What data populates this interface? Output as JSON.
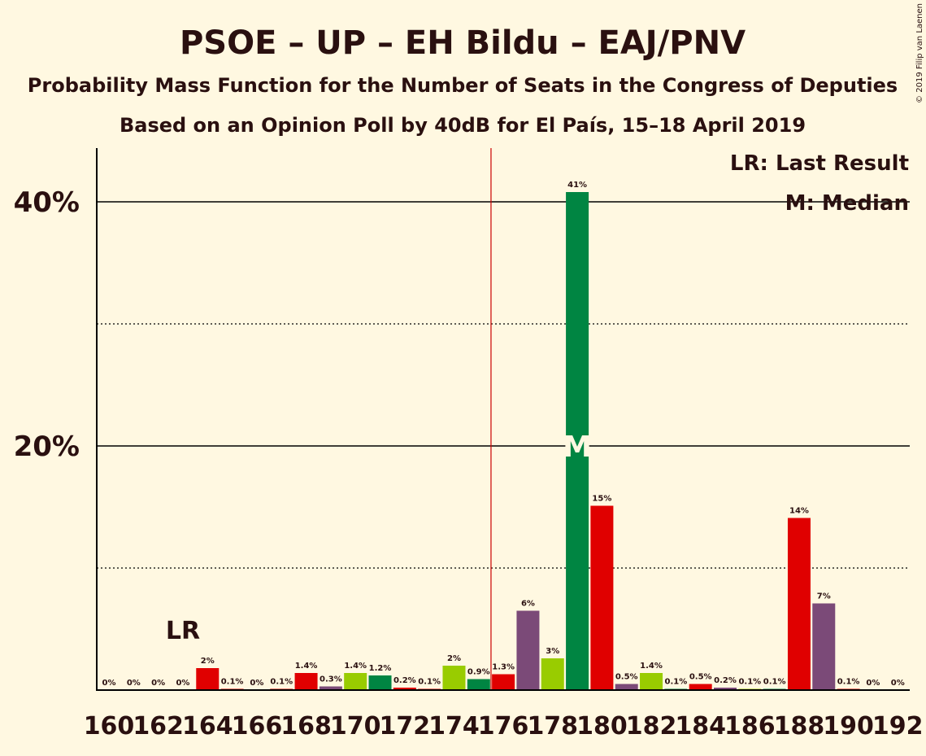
{
  "credit": "© 2019 Filip van Laenen",
  "chart_data": {
    "type": "bar",
    "title": "PSOE – UP – EH Bildu – EAJ/PNV",
    "subtitle1": "Probability Mass Function for the Number of Seats in the Congress of Deputies",
    "subtitle2": "Based on an Opinion Poll by 40dB for El País, 15–18 April 2019",
    "ylim": [
      0,
      44
    ],
    "y_major_ticks": [
      {
        "value": 20,
        "label": "20%"
      },
      {
        "value": 40,
        "label": "40%"
      }
    ],
    "y_minor_ticks": [
      10,
      30
    ],
    "x_tick_labels": [
      "160",
      "162",
      "164",
      "166",
      "168",
      "170",
      "172",
      "174",
      "176",
      "178",
      "180",
      "182",
      "184",
      "186",
      "188",
      "190",
      "192"
    ],
    "bars": [
      {
        "seats": 160,
        "value": 0,
        "label": "0%",
        "color": "#E00000"
      },
      {
        "seats": 161,
        "value": 0,
        "label": "0%",
        "color": "#E00000"
      },
      {
        "seats": 162,
        "value": 0,
        "label": "0%",
        "color": "#E00000"
      },
      {
        "seats": 163,
        "value": 0,
        "label": "0%",
        "color": "#E00000"
      },
      {
        "seats": 164,
        "value": 1.8,
        "label": "2%",
        "color": "#E00000"
      },
      {
        "seats": 165,
        "value": 0.1,
        "label": "0.1%",
        "color": "#E00000"
      },
      {
        "seats": 166,
        "value": 0,
        "label": "0%",
        "color": "#E00000"
      },
      {
        "seats": 167,
        "value": 0.1,
        "label": "0.1%",
        "color": "#E00000"
      },
      {
        "seats": 168,
        "value": 1.4,
        "label": "1.4%",
        "color": "#E00000"
      },
      {
        "seats": 169,
        "value": 0.3,
        "label": "0.3%",
        "color": "#7B4A78"
      },
      {
        "seats": 170,
        "value": 1.4,
        "label": "1.4%",
        "color": "#99CC00"
      },
      {
        "seats": 171,
        "value": 1.2,
        "label": "1.2%",
        "color": "#008542"
      },
      {
        "seats": 172,
        "value": 0.2,
        "label": "0.2%",
        "color": "#E00000"
      },
      {
        "seats": 173,
        "value": 0.1,
        "label": "0.1%",
        "color": "#E00000"
      },
      {
        "seats": 174,
        "value": 2.0,
        "label": "2%",
        "color": "#99CC00"
      },
      {
        "seats": 175,
        "value": 0.9,
        "label": "0.9%",
        "color": "#008542"
      },
      {
        "seats": 176,
        "value": 1.3,
        "label": "1.3%",
        "color": "#E00000"
      },
      {
        "seats": 177,
        "value": 6.5,
        "label": "6%",
        "color": "#7B4A78"
      },
      {
        "seats": 178,
        "value": 2.6,
        "label": "3%",
        "color": "#99CC00"
      },
      {
        "seats": 179,
        "value": 40.8,
        "label": "41%",
        "color": "#008542"
      },
      {
        "seats": 180,
        "value": 15.1,
        "label": "15%",
        "color": "#E00000"
      },
      {
        "seats": 181,
        "value": 0.5,
        "label": "0.5%",
        "color": "#7B4A78"
      },
      {
        "seats": 182,
        "value": 1.4,
        "label": "1.4%",
        "color": "#99CC00"
      },
      {
        "seats": 183,
        "value": 0.1,
        "label": "0.1%",
        "color": "#008542"
      },
      {
        "seats": 184,
        "value": 0.5,
        "label": "0.5%",
        "color": "#E00000"
      },
      {
        "seats": 185,
        "value": 0.2,
        "label": "0.2%",
        "color": "#7B4A78"
      },
      {
        "seats": 186,
        "value": 0.1,
        "label": "0.1%",
        "color": "#99CC00"
      },
      {
        "seats": 187,
        "value": 0.1,
        "label": "0.1%",
        "color": "#008542"
      },
      {
        "seats": 188,
        "value": 14.1,
        "label": "14%",
        "color": "#E00000"
      },
      {
        "seats": 189,
        "value": 7.1,
        "label": "7%",
        "color": "#7B4A78"
      },
      {
        "seats": 190,
        "value": 0.1,
        "label": "0.1%",
        "color": "#E00000"
      },
      {
        "seats": 191,
        "value": 0,
        "label": "0%",
        "color": "#E00000"
      },
      {
        "seats": 192,
        "value": 0,
        "label": "0%",
        "color": "#E00000"
      }
    ],
    "majority_line_seats": 175.5,
    "majority_line_color": "#CC0000",
    "last_result": {
      "seats": 163,
      "label": "LR"
    },
    "median": {
      "seats": 179,
      "label": "M"
    },
    "legend": [
      "LR: Last Result",
      "M: Median"
    ],
    "legend_placement": "top-right"
  }
}
